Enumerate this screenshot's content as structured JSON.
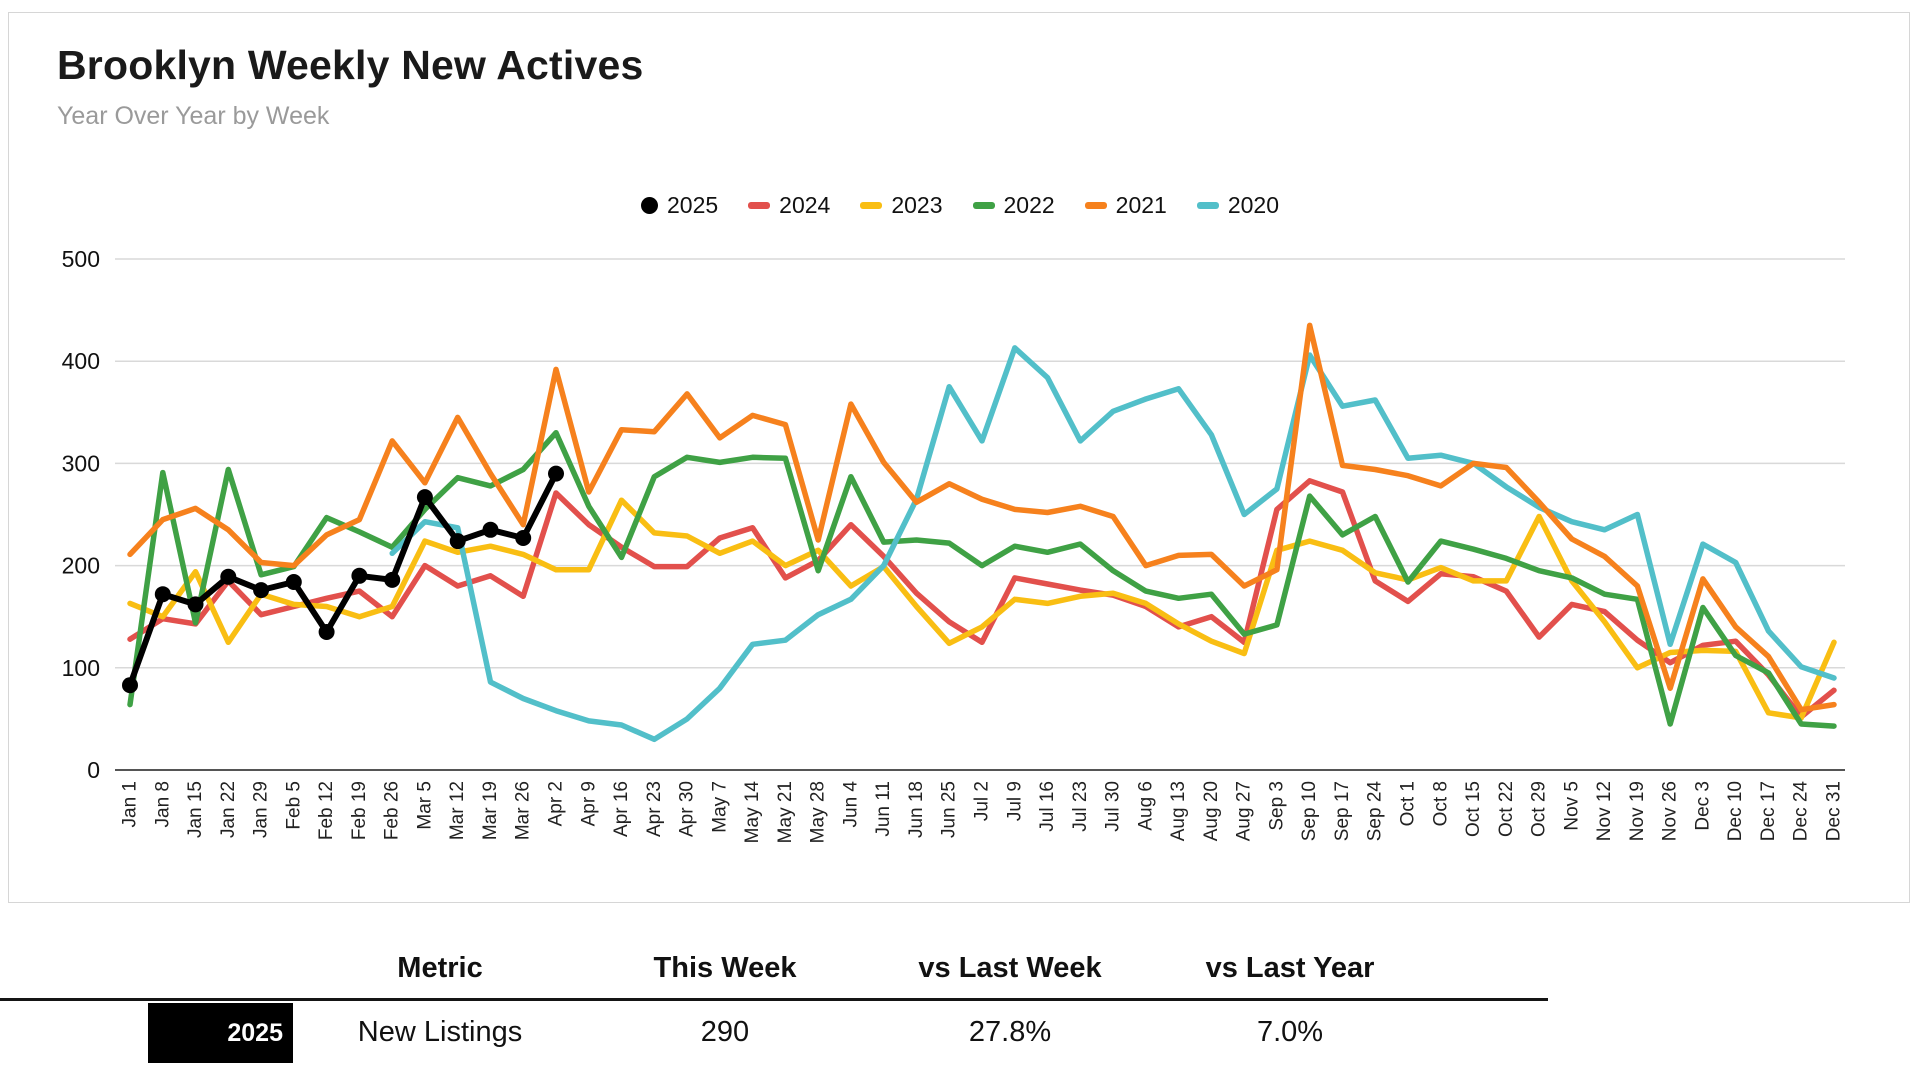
{
  "title": "Brooklyn Weekly New Actives",
  "subtitle": "Year Over Year by Week",
  "chart_data": {
    "type": "line",
    "title": "Brooklyn Weekly New Actives",
    "subtitle": "Year Over Year by Week",
    "xlabel": "",
    "ylabel": "",
    "ylim": [
      0,
      500
    ],
    "yticks": [
      0,
      100,
      200,
      300,
      400,
      500
    ],
    "grid": true,
    "legend_position": "top",
    "x": [
      "Jan 1",
      "Jan 8",
      "Jan 15",
      "Jan 22",
      "Jan 29",
      "Feb 5",
      "Feb 12",
      "Feb 19",
      "Feb 26",
      "Mar 5",
      "Mar 12",
      "Mar 19",
      "Mar 26",
      "Apr 2",
      "Apr 9",
      "Apr 16",
      "Apr 23",
      "Apr 30",
      "May 7",
      "May 14",
      "May 21",
      "May 28",
      "Jun 4",
      "Jun 11",
      "Jun 18",
      "Jun 25",
      "Jul 2",
      "Jul 9",
      "Jul 16",
      "Jul 23",
      "Jul 30",
      "Aug 6",
      "Aug 13",
      "Aug 20",
      "Aug 27",
      "Sep 3",
      "Sep 10",
      "Sep 17",
      "Sep 24",
      "Oct 1",
      "Oct 8",
      "Oct 15",
      "Oct 22",
      "Oct 29",
      "Nov 5",
      "Nov 12",
      "Nov 19",
      "Nov 26",
      "Dec 3",
      "Dec 10",
      "Dec 17",
      "Dec 24",
      "Dec 31"
    ],
    "series": [
      {
        "name": "2025",
        "color": "#000000",
        "marker": "circle",
        "values": [
          83,
          172,
          162,
          189,
          176,
          184,
          135,
          190,
          186,
          267,
          224,
          235,
          227,
          290,
          null,
          null,
          null,
          null,
          null,
          null,
          null,
          null,
          null,
          null,
          null,
          null,
          null,
          null,
          null,
          null,
          null,
          null,
          null,
          null,
          null,
          null,
          null,
          null,
          null,
          null,
          null,
          null,
          null,
          null,
          null,
          null,
          null,
          null,
          null,
          null,
          null,
          null,
          null
        ]
      },
      {
        "name": "2024",
        "color": "#E2504C",
        "marker": "none",
        "values": [
          128,
          148,
          143,
          185,
          152,
          160,
          168,
          175,
          150,
          200,
          180,
          190,
          170,
          271,
          240,
          218,
          199,
          199,
          227,
          237,
          188,
          205,
          240,
          209,
          173,
          145,
          125,
          188,
          182,
          176,
          171,
          160,
          140,
          150,
          125,
          255,
          283,
          272,
          185,
          165,
          192,
          189,
          175,
          130,
          162,
          155,
          127,
          105,
          122,
          126,
          93,
          52,
          78
        ]
      },
      {
        "name": "2023",
        "color": "#F9BE13",
        "marker": "none",
        "values": [
          163,
          150,
          194,
          125,
          172,
          162,
          160,
          150,
          160,
          224,
          213,
          219,
          211,
          196,
          196,
          264,
          232,
          229,
          212,
          224,
          200,
          215,
          180,
          199,
          160,
          124,
          140,
          167,
          163,
          170,
          173,
          163,
          143,
          126,
          114,
          215,
          224,
          215,
          193,
          186,
          198,
          185,
          185,
          248,
          185,
          145,
          100,
          115,
          117,
          116,
          56,
          51,
          125
        ]
      },
      {
        "name": "2022",
        "color": "#3FA145",
        "marker": "none",
        "values": [
          64,
          291,
          144,
          294,
          191,
          199,
          247,
          233,
          218,
          255,
          286,
          278,
          294,
          330,
          258,
          208,
          287,
          306,
          301,
          306,
          305,
          195,
          287,
          223,
          225,
          222,
          200,
          219,
          213,
          221,
          195,
          175,
          168,
          172,
          133,
          142,
          268,
          230,
          248,
          184,
          224,
          216,
          207,
          195,
          188,
          172,
          167,
          45,
          159,
          112,
          95,
          45,
          43
        ]
      },
      {
        "name": "2021",
        "color": "#F6811D",
        "marker": "none",
        "values": [
          211,
          245,
          256,
          235,
          203,
          200,
          230,
          245,
          322,
          281,
          345,
          290,
          240,
          392,
          272,
          333,
          331,
          368,
          325,
          347,
          338,
          225,
          358,
          301,
          262,
          280,
          265,
          255,
          252,
          258,
          248,
          200,
          210,
          211,
          180,
          196,
          435,
          298,
          294,
          288,
          278,
          300,
          296,
          262,
          226,
          209,
          180,
          80,
          187,
          140,
          111,
          59,
          64
        ]
      },
      {
        "name": "2020",
        "color": "#52BFC9",
        "marker": "none",
        "values": [
          null,
          null,
          null,
          null,
          null,
          null,
          null,
          null,
          212,
          243,
          237,
          86,
          70,
          58,
          48,
          44,
          30,
          50,
          80,
          123,
          127,
          152,
          167,
          200,
          265,
          375,
          322,
          413,
          384,
          322,
          351,
          363,
          373,
          328,
          250,
          275,
          406,
          356,
          362,
          305,
          308,
          300,
          277,
          257,
          243,
          235,
          250,
          123,
          221,
          203,
          136,
          101,
          90
        ]
      }
    ]
  },
  "table": {
    "headers": [
      "Metric",
      "This Week",
      "vs Last Week",
      "vs Last Year"
    ],
    "row": {
      "year": "2025",
      "metric": "New Listings",
      "this_week": "290",
      "vs_last_week": "27.8%",
      "vs_last_year": "7.0%"
    }
  }
}
